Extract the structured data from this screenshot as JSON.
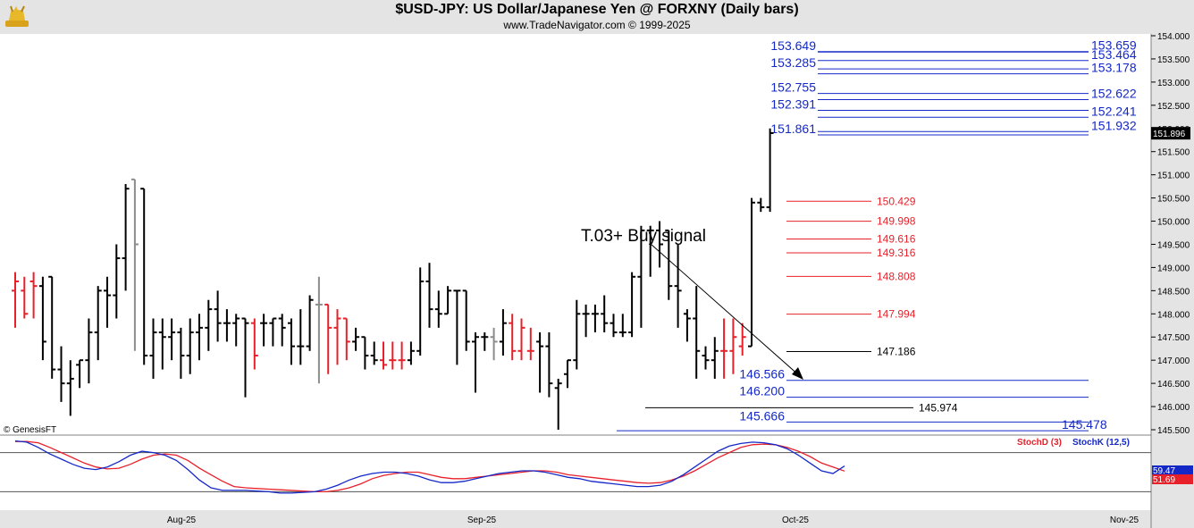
{
  "header": {
    "title": "$USD-JPY:  US Dollar/Japanese Yen @ FORXNY  (Daily bars)",
    "subtitle": "www.TradeNavigator.com © 1999-2025",
    "logo_icon": "gold-bull-logo-icon"
  },
  "colors": {
    "bar_black": "#000000",
    "bar_red": "#e8202a",
    "bar_gray": "#8c8c8c",
    "level_blue": "#1428c8",
    "level_red": "#e8202a",
    "stoch_d": "#e8202a",
    "stoch_k": "#1428c8",
    "axis_bg": "#e4e4e4"
  },
  "chart_data": [
    {
      "type": "ohlc",
      "title": "$USD-JPY:  US Dollar/Japanese Yen @ FORXNY  (Daily bars)",
      "copyright": "© GenesisFT",
      "ylim": [
        145.4,
        154.2
      ],
      "y_ticks": [
        "154.000",
        "153.500",
        "153.000",
        "152.500",
        "152.000",
        "151.500",
        "151.000",
        "150.500",
        "150.000",
        "149.500",
        "149.000",
        "148.500",
        "148.000",
        "147.500",
        "147.000",
        "146.500",
        "146.000",
        "145.500"
      ],
      "x_labels": [
        "Aug-25",
        "Sep-25",
        "Oct-25",
        "Nov-25"
      ],
      "last_price": "151.896",
      "annotation": {
        "text": "T.03+ Buy signal"
      },
      "bars": [
        {
          "o": 148.5,
          "h": 148.9,
          "l": 147.7,
          "c": 148.7,
          "color": "red"
        },
        {
          "o": 148.5,
          "h": 148.8,
          "l": 147.9,
          "c": 148.0,
          "color": "red"
        },
        {
          "o": 148.7,
          "h": 148.9,
          "l": 147.9,
          "c": 148.6,
          "color": "red"
        },
        {
          "o": 148.6,
          "h": 148.8,
          "l": 147.0,
          "c": 147.4,
          "color": "black"
        },
        {
          "o": 148.8,
          "h": 148.8,
          "l": 146.6,
          "c": 146.8,
          "color": "black"
        },
        {
          "o": 146.8,
          "h": 147.3,
          "l": 146.1,
          "c": 146.5,
          "color": "black"
        },
        {
          "o": 146.5,
          "h": 147.0,
          "l": 145.8,
          "c": 146.6,
          "color": "black"
        },
        {
          "o": 146.9,
          "h": 147.0,
          "l": 146.4,
          "c": 147.0,
          "color": "black"
        },
        {
          "o": 147.0,
          "h": 147.9,
          "l": 146.5,
          "c": 147.6,
          "color": "black"
        },
        {
          "o": 147.6,
          "h": 148.6,
          "l": 147.0,
          "c": 148.5,
          "color": "black"
        },
        {
          "o": 148.5,
          "h": 148.8,
          "l": 147.7,
          "c": 148.4,
          "color": "black"
        },
        {
          "o": 148.4,
          "h": 149.5,
          "l": 147.9,
          "c": 149.2,
          "color": "black"
        },
        {
          "o": 149.2,
          "h": 150.8,
          "l": 148.5,
          "c": 150.7,
          "color": "black"
        },
        {
          "o": 150.9,
          "h": 150.9,
          "l": 147.2,
          "c": 149.5,
          "color": "gray"
        },
        {
          "o": 150.7,
          "h": 150.7,
          "l": 146.9,
          "c": 147.1,
          "color": "black"
        },
        {
          "o": 147.1,
          "h": 147.9,
          "l": 146.6,
          "c": 147.6,
          "color": "black"
        },
        {
          "o": 147.6,
          "h": 147.9,
          "l": 146.8,
          "c": 147.5,
          "color": "black"
        },
        {
          "o": 147.5,
          "h": 147.9,
          "l": 147.0,
          "c": 147.6,
          "color": "black"
        },
        {
          "o": 147.6,
          "h": 147.7,
          "l": 146.6,
          "c": 147.1,
          "color": "black"
        },
        {
          "o": 147.1,
          "h": 147.9,
          "l": 146.7,
          "c": 147.6,
          "color": "black"
        },
        {
          "o": 147.6,
          "h": 148.0,
          "l": 147.0,
          "c": 147.7,
          "color": "black"
        },
        {
          "o": 147.7,
          "h": 148.3,
          "l": 147.2,
          "c": 148.1,
          "color": "black"
        },
        {
          "o": 148.1,
          "h": 148.5,
          "l": 147.4,
          "c": 147.8,
          "color": "black"
        },
        {
          "o": 147.8,
          "h": 148.1,
          "l": 147.4,
          "c": 147.8,
          "color": "black"
        },
        {
          "o": 147.8,
          "h": 148.0,
          "l": 147.3,
          "c": 147.9,
          "color": "black"
        },
        {
          "o": 147.9,
          "h": 147.9,
          "l": 146.2,
          "c": 147.8,
          "color": "black"
        },
        {
          "o": 147.8,
          "h": 147.9,
          "l": 146.8,
          "c": 147.1,
          "color": "red"
        },
        {
          "o": 147.8,
          "h": 148.0,
          "l": 147.3,
          "c": 147.8,
          "color": "black"
        },
        {
          "o": 147.8,
          "h": 147.9,
          "l": 147.3,
          "c": 147.9,
          "color": "black"
        },
        {
          "o": 147.9,
          "h": 148.0,
          "l": 147.3,
          "c": 147.7,
          "color": "black"
        },
        {
          "o": 147.8,
          "h": 147.9,
          "l": 146.9,
          "c": 147.3,
          "color": "black"
        },
        {
          "o": 147.3,
          "h": 148.1,
          "l": 146.9,
          "c": 147.3,
          "color": "black"
        },
        {
          "o": 147.3,
          "h": 148.4,
          "l": 147.2,
          "c": 148.3,
          "color": "black"
        },
        {
          "o": 148.2,
          "h": 148.8,
          "l": 146.5,
          "c": 148.2,
          "color": "gray"
        },
        {
          "o": 148.2,
          "h": 148.2,
          "l": 146.7,
          "c": 147.7,
          "color": "red"
        },
        {
          "o": 147.7,
          "h": 148.1,
          "l": 146.9,
          "c": 147.9,
          "color": "red"
        },
        {
          "o": 147.9,
          "h": 147.9,
          "l": 147.0,
          "c": 147.4,
          "color": "red"
        },
        {
          "o": 147.4,
          "h": 147.7,
          "l": 147.2,
          "c": 147.5,
          "color": "black"
        },
        {
          "o": 147.5,
          "h": 147.5,
          "l": 146.8,
          "c": 147.1,
          "color": "black"
        },
        {
          "o": 147.1,
          "h": 147.4,
          "l": 146.9,
          "c": 147.0,
          "color": "black"
        },
        {
          "o": 147.0,
          "h": 147.4,
          "l": 146.8,
          "c": 146.9,
          "color": "red"
        },
        {
          "o": 147.0,
          "h": 147.4,
          "l": 146.8,
          "c": 147.0,
          "color": "red"
        },
        {
          "o": 147.0,
          "h": 147.4,
          "l": 146.8,
          "c": 147.0,
          "color": "red"
        },
        {
          "o": 147.0,
          "h": 147.4,
          "l": 146.9,
          "c": 147.2,
          "color": "black"
        },
        {
          "o": 147.2,
          "h": 149.0,
          "l": 147.1,
          "c": 148.7,
          "color": "black"
        },
        {
          "o": 148.7,
          "h": 149.1,
          "l": 147.7,
          "c": 148.1,
          "color": "black"
        },
        {
          "o": 148.1,
          "h": 148.5,
          "l": 147.7,
          "c": 148.0,
          "color": "black"
        },
        {
          "o": 148.0,
          "h": 148.6,
          "l": 148.0,
          "c": 148.5,
          "color": "black"
        },
        {
          "o": 148.5,
          "h": 148.5,
          "l": 146.9,
          "c": 148.5,
          "color": "black"
        },
        {
          "o": 148.5,
          "h": 148.5,
          "l": 147.2,
          "c": 147.4,
          "color": "black"
        },
        {
          "o": 147.4,
          "h": 147.6,
          "l": 146.3,
          "c": 147.5,
          "color": "black"
        },
        {
          "o": 147.5,
          "h": 147.6,
          "l": 147.2,
          "c": 147.5,
          "color": "black"
        },
        {
          "o": 147.5,
          "h": 147.7,
          "l": 147.0,
          "c": 147.4,
          "color": "gray"
        },
        {
          "o": 147.4,
          "h": 148.1,
          "l": 147.1,
          "c": 147.8,
          "color": "black"
        },
        {
          "o": 147.8,
          "h": 148.0,
          "l": 147.0,
          "c": 147.2,
          "color": "red"
        },
        {
          "o": 147.2,
          "h": 147.9,
          "l": 147.0,
          "c": 147.7,
          "color": "red"
        },
        {
          "o": 147.2,
          "h": 147.7,
          "l": 147.0,
          "c": 147.2,
          "color": "red"
        },
        {
          "o": 147.4,
          "h": 147.6,
          "l": 146.3,
          "c": 147.3,
          "color": "black"
        },
        {
          "o": 147.3,
          "h": 147.6,
          "l": 146.2,
          "c": 146.5,
          "color": "black"
        },
        {
          "o": 146.4,
          "h": 146.6,
          "l": 145.5,
          "c": 146.5,
          "color": "black"
        },
        {
          "o": 146.7,
          "h": 147.0,
          "l": 146.4,
          "c": 147.0,
          "color": "black"
        },
        {
          "o": 147.0,
          "h": 148.3,
          "l": 146.8,
          "c": 148.0,
          "color": "black"
        },
        {
          "o": 148.0,
          "h": 148.2,
          "l": 147.5,
          "c": 148.0,
          "color": "black"
        },
        {
          "o": 148.0,
          "h": 148.2,
          "l": 147.6,
          "c": 148.0,
          "color": "black"
        },
        {
          "o": 148.0,
          "h": 148.4,
          "l": 147.6,
          "c": 147.8,
          "color": "black"
        },
        {
          "o": 147.8,
          "h": 148.0,
          "l": 147.5,
          "c": 147.6,
          "color": "black"
        },
        {
          "o": 147.6,
          "h": 148.0,
          "l": 147.5,
          "c": 147.6,
          "color": "black"
        },
        {
          "o": 147.6,
          "h": 148.9,
          "l": 147.5,
          "c": 148.8,
          "color": "black"
        },
        {
          "o": 148.8,
          "h": 149.9,
          "l": 147.7,
          "c": 149.8,
          "color": "black"
        },
        {
          "o": 149.8,
          "h": 149.9,
          "l": 148.8,
          "c": 149.8,
          "color": "black"
        },
        {
          "o": 149.8,
          "h": 150.0,
          "l": 149.0,
          "c": 149.5,
          "color": "black"
        },
        {
          "o": 149.8,
          "h": 149.8,
          "l": 148.3,
          "c": 148.6,
          "color": "black"
        },
        {
          "o": 148.6,
          "h": 149.5,
          "l": 147.7,
          "c": 148.5,
          "color": "black"
        },
        {
          "o": 148.0,
          "h": 148.1,
          "l": 147.4,
          "c": 147.9,
          "color": "black"
        },
        {
          "o": 147.9,
          "h": 148.6,
          "l": 146.6,
          "c": 147.2,
          "color": "black"
        },
        {
          "o": 147.1,
          "h": 147.3,
          "l": 146.8,
          "c": 147.0,
          "color": "black"
        },
        {
          "o": 147.0,
          "h": 147.5,
          "l": 146.6,
          "c": 147.2,
          "color": "black"
        },
        {
          "o": 147.2,
          "h": 147.9,
          "l": 146.6,
          "c": 147.2,
          "color": "red"
        },
        {
          "o": 147.2,
          "h": 147.9,
          "l": 146.7,
          "c": 147.5,
          "color": "red"
        },
        {
          "o": 147.3,
          "h": 147.8,
          "l": 147.1,
          "c": 147.5,
          "color": "red"
        },
        {
          "o": 147.3,
          "h": 150.5,
          "l": 147.3,
          "c": 150.4,
          "color": "black"
        },
        {
          "o": 150.4,
          "h": 150.5,
          "l": 150.2,
          "c": 150.3,
          "color": "black"
        },
        {
          "o": 150.3,
          "h": 152.0,
          "l": 150.2,
          "c": 151.9,
          "color": "black"
        }
      ],
      "levels_blue": [
        {
          "label": "153.649",
          "value": 153.649,
          "side": "left"
        },
        {
          "label": "153.659",
          "value": 153.659,
          "side": "right"
        },
        {
          "label": "153.464",
          "value": 153.464,
          "side": "right"
        },
        {
          "label": "153.285",
          "value": 153.285,
          "side": "left"
        },
        {
          "label": "153.178",
          "value": 153.178,
          "side": "right"
        },
        {
          "label": "152.755",
          "value": 152.755,
          "side": "left"
        },
        {
          "label": "152.622",
          "value": 152.622,
          "side": "right"
        },
        {
          "label": "152.391",
          "value": 152.391,
          "side": "left"
        },
        {
          "label": "152.241",
          "value": 152.241,
          "side": "right"
        },
        {
          "label": "151.861",
          "value": 151.861,
          "side": "left"
        },
        {
          "label": "151.932",
          "value": 151.932,
          "side": "right"
        },
        {
          "label": "146.566",
          "value": 146.566,
          "side": "lower-left"
        },
        {
          "label": "146.200",
          "value": 146.2,
          "side": "lower-left"
        },
        {
          "label": "145.666",
          "value": 145.666,
          "side": "lower-left"
        },
        {
          "label": "145.478",
          "value": 145.478,
          "side": "lower-right"
        }
      ],
      "levels_red": [
        {
          "label": "150.429",
          "value": 150.429
        },
        {
          "label": "149.998",
          "value": 149.998
        },
        {
          "label": "149.616",
          "value": 149.616
        },
        {
          "label": "149.316",
          "value": 149.316
        },
        {
          "label": "148.808",
          "value": 148.808
        },
        {
          "label": "147.994",
          "value": 147.994
        }
      ],
      "levels_black": [
        {
          "label": "147.186",
          "value": 147.186
        },
        {
          "label": "145.974",
          "value": 145.974
        }
      ]
    },
    {
      "type": "line",
      "ylim": [
        0,
        100
      ],
      "legend": [
        "StochD (3)",
        "StochK (12,5)"
      ],
      "last_values": {
        "k": "59.47",
        "d": "51.69"
      },
      "series": [
        {
          "name": "StochD (3)",
          "values": [
            97,
            97,
            95,
            88,
            80,
            72,
            64,
            58,
            55,
            56,
            62,
            70,
            76,
            78,
            76,
            68,
            56,
            46,
            36,
            28,
            26,
            25,
            24,
            23,
            22,
            21,
            20,
            20,
            22,
            26,
            32,
            40,
            45,
            48,
            50,
            50,
            46,
            42,
            40,
            40,
            42,
            44,
            46,
            48,
            50,
            52,
            52,
            50,
            46,
            44,
            42,
            40,
            38,
            36,
            34,
            33,
            34,
            38,
            44,
            52,
            62,
            72,
            80,
            88,
            92,
            93,
            92,
            88,
            82,
            74,
            64,
            58,
            51.69
          ]
        },
        {
          "name": "StochK (12,5)",
          "values": [
            98,
            96,
            88,
            78,
            70,
            62,
            56,
            54,
            58,
            66,
            76,
            82,
            80,
            76,
            68,
            54,
            38,
            26,
            22,
            22,
            22,
            21,
            20,
            18,
            18,
            19,
            20,
            24,
            30,
            38,
            44,
            48,
            50,
            50,
            48,
            44,
            38,
            34,
            34,
            36,
            40,
            44,
            48,
            50,
            52,
            52,
            50,
            46,
            42,
            40,
            36,
            34,
            32,
            30,
            28,
            28,
            30,
            36,
            46,
            58,
            70,
            82,
            90,
            94,
            96,
            95,
            92,
            86,
            76,
            64,
            52,
            48,
            59.47
          ]
        }
      ]
    }
  ]
}
